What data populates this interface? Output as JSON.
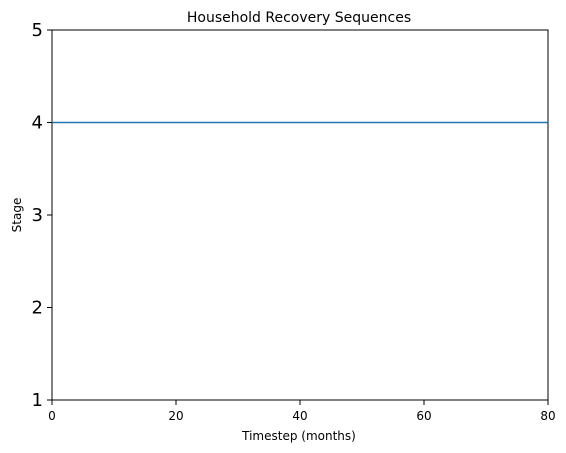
{
  "chart_data": {
    "type": "line",
    "title": "Household Recovery Sequences",
    "xlabel": "Timestep (months)",
    "ylabel": "Stage",
    "xlim": [
      0,
      80
    ],
    "ylim": [
      1,
      5
    ],
    "xticks": [
      0,
      20,
      40,
      60,
      80
    ],
    "yticks": [
      1,
      2,
      3,
      4,
      5
    ],
    "grid": false,
    "series": [
      {
        "color": "#1f77b4",
        "x": [
          0,
          80
        ],
        "y": [
          4,
          4
        ]
      }
    ]
  }
}
